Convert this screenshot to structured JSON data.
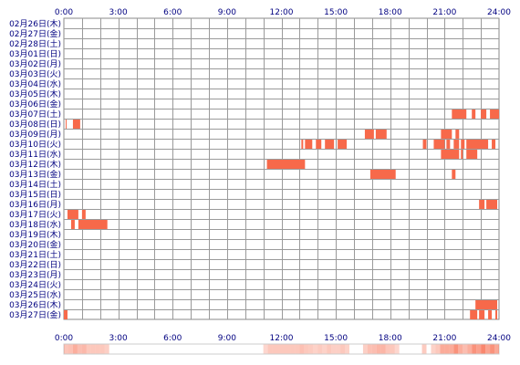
{
  "chart_data": {
    "type": "timeline-heatmap",
    "x_unit": "hour",
    "x_range": [
      0,
      24
    ],
    "x_ticks": [
      "0:00",
      "3:00",
      "6:00",
      "9:00",
      "12:00",
      "15:00",
      "18:00",
      "21:00",
      "24:00"
    ],
    "grid": true,
    "bar_color": "#f7694a",
    "rows": [
      {
        "label": "02月26日(木)",
        "segments": []
      },
      {
        "label": "02月27日(金)",
        "segments": []
      },
      {
        "label": "02月28日(土)",
        "segments": []
      },
      {
        "label": "03月01日(日)",
        "segments": []
      },
      {
        "label": "03月02日(月)",
        "segments": []
      },
      {
        "label": "03月03日(火)",
        "segments": []
      },
      {
        "label": "03月04日(水)",
        "segments": []
      },
      {
        "label": "03月05日(木)",
        "segments": []
      },
      {
        "label": "03月06日(金)",
        "segments": []
      },
      {
        "label": "03月07日(土)",
        "segments": [
          [
            21.4,
            22.2
          ],
          [
            22.5,
            22.7
          ],
          [
            23.0,
            23.3
          ],
          [
            23.5,
            24.0
          ]
        ]
      },
      {
        "label": "03月08日(日)",
        "segments": [
          [
            0.1,
            0.15
          ],
          [
            0.5,
            0.9
          ]
        ]
      },
      {
        "label": "03月09日(月)",
        "segments": [
          [
            16.6,
            17.1
          ],
          [
            17.2,
            17.8
          ],
          [
            20.8,
            21.4
          ],
          [
            21.6,
            21.8
          ]
        ]
      },
      {
        "label": "03月10日(火)",
        "segments": [
          [
            13.1,
            13.2
          ],
          [
            13.3,
            13.7
          ],
          [
            13.9,
            14.2
          ],
          [
            14.4,
            14.9
          ],
          [
            15.1,
            15.6
          ],
          [
            19.8,
            20.0
          ],
          [
            20.4,
            21.0
          ],
          [
            21.1,
            21.3
          ],
          [
            21.5,
            21.8
          ],
          [
            21.9,
            22.1
          ],
          [
            22.2,
            23.4
          ],
          [
            23.6,
            23.8
          ]
        ]
      },
      {
        "label": "03月11日(水)",
        "segments": [
          [
            20.8,
            21.8
          ],
          [
            21.9,
            22.0
          ],
          [
            22.2,
            22.8
          ]
        ]
      },
      {
        "label": "03月12日(木)",
        "segments": [
          [
            11.2,
            13.3
          ]
        ]
      },
      {
        "label": "03月13日(金)",
        "segments": [
          [
            16.9,
            18.3
          ],
          [
            21.4,
            21.6
          ]
        ]
      },
      {
        "label": "03月14日(土)",
        "segments": []
      },
      {
        "label": "03月15日(日)",
        "segments": []
      },
      {
        "label": "03月16日(月)",
        "segments": [
          [
            22.9,
            23.2
          ],
          [
            23.3,
            23.9
          ]
        ]
      },
      {
        "label": "03月17日(火)",
        "segments": [
          [
            0.2,
            0.8
          ],
          [
            1.0,
            1.2
          ]
        ]
      },
      {
        "label": "03月18日(水)",
        "segments": [
          [
            0.4,
            0.6
          ],
          [
            0.8,
            2.4
          ]
        ]
      },
      {
        "label": "03月19日(木)",
        "segments": []
      },
      {
        "label": "03月20日(金)",
        "segments": []
      },
      {
        "label": "03月21日(土)",
        "segments": []
      },
      {
        "label": "03月22日(日)",
        "segments": []
      },
      {
        "label": "03月23日(月)",
        "segments": []
      },
      {
        "label": "03月24日(火)",
        "segments": []
      },
      {
        "label": "03月25日(水)",
        "segments": []
      },
      {
        "label": "03月26日(木)",
        "segments": [
          [
            22.7,
            23.9
          ]
        ]
      },
      {
        "label": "03月27日(金)",
        "segments": [
          [
            0.0,
            0.2
          ],
          [
            22.4,
            22.8
          ],
          [
            22.9,
            23.2
          ],
          [
            23.4,
            23.6
          ],
          [
            23.8,
            23.9
          ]
        ]
      }
    ]
  }
}
